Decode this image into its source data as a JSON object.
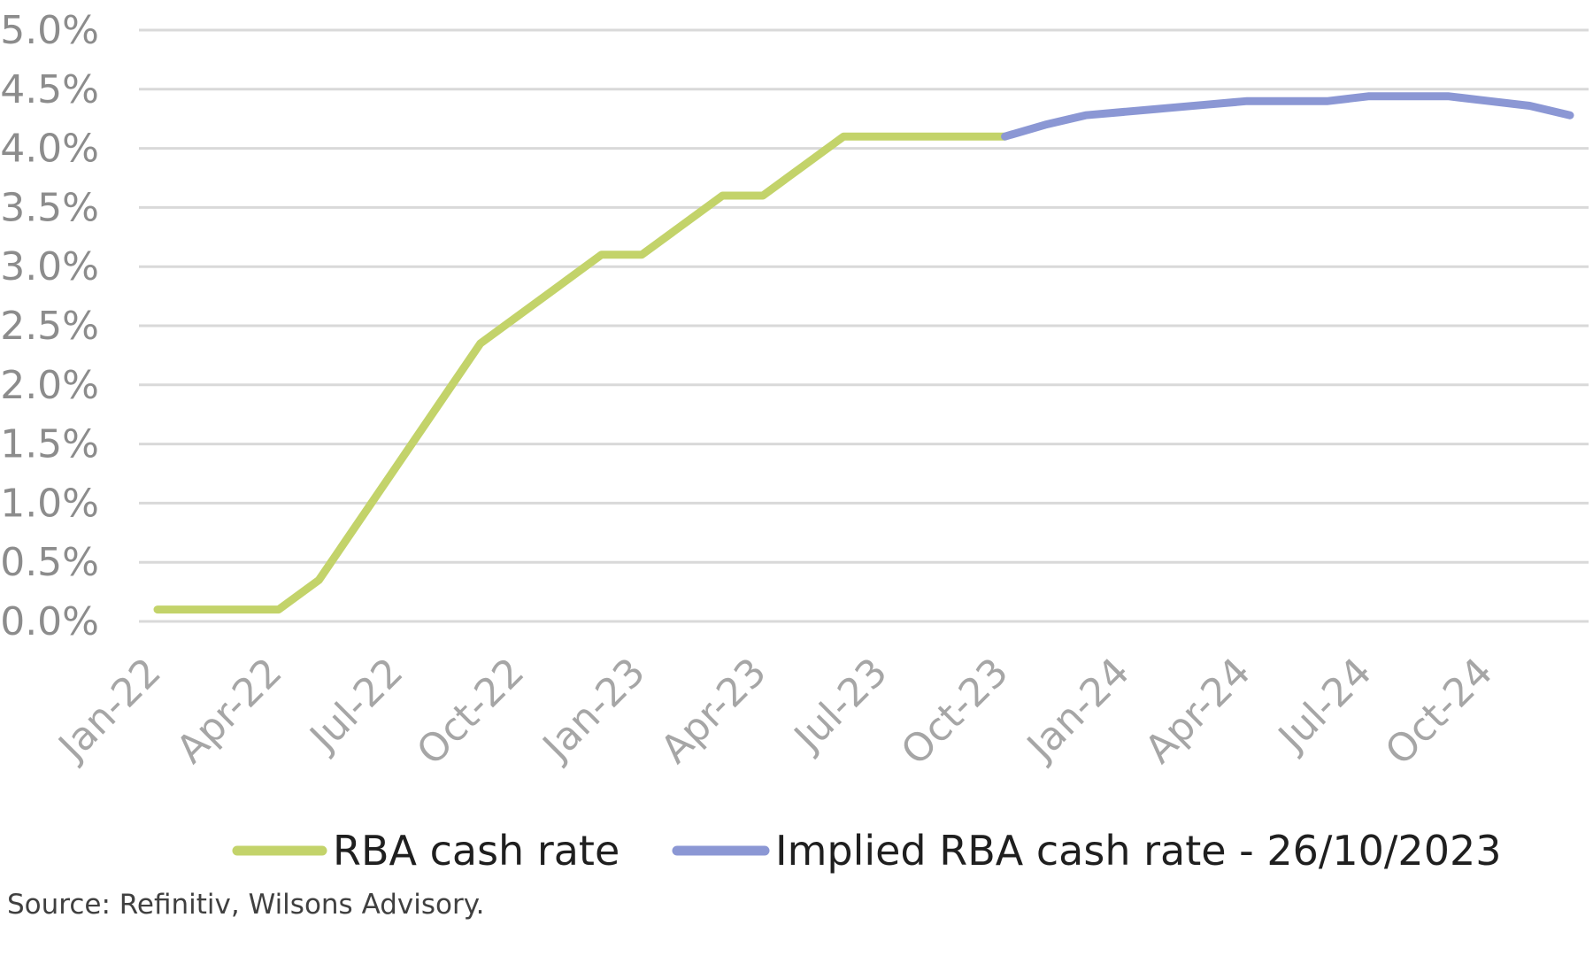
{
  "chart_data": {
    "type": "line",
    "ylabel": "",
    "xlabel": "",
    "ylim": [
      0,
      5
    ],
    "y_tick_values": [
      0,
      0.5,
      1,
      1.5,
      2,
      2.5,
      3,
      3.5,
      4,
      4.5,
      5
    ],
    "y_tick_labels": [
      "0.0%",
      "0.5%",
      "1.0%",
      "1.5%",
      "2.0%",
      "2.5%",
      "3.0%",
      "3.5%",
      "4.0%",
      "4.5%",
      "5.0%"
    ],
    "x_tick_labels": [
      "Jan-22",
      "Apr-22",
      "Jul-22",
      "Oct-22",
      "Jan-23",
      "Apr-23",
      "Jul-23",
      "Oct-23",
      "Jan-24",
      "Apr-24",
      "Jul-24",
      "Oct-24"
    ],
    "grid": true,
    "legend_position": "bottom",
    "series": [
      {
        "name": "RBA cash rate",
        "color": "#c3d36a",
        "x": [
          "Jan-22",
          "Feb-22",
          "Mar-22",
          "Apr-22",
          "May-22",
          "Jun-22",
          "Jul-22",
          "Aug-22",
          "Sep-22",
          "Oct-22",
          "Nov-22",
          "Dec-22",
          "Jan-23",
          "Feb-23",
          "Mar-23",
          "Apr-23",
          "May-23",
          "Jun-23",
          "Jul-23",
          "Aug-23",
          "Sep-23",
          "Oct-23"
        ],
        "values": [
          0.1,
          0.1,
          0.1,
          0.1,
          0.35,
          0.85,
          1.35,
          1.85,
          2.35,
          2.6,
          2.85,
          3.1,
          3.1,
          3.35,
          3.6,
          3.6,
          3.85,
          4.1,
          4.1,
          4.1,
          4.1,
          4.1
        ]
      },
      {
        "name": "Implied RBA cash rate - 26/10/2023",
        "color": "#8b97d4",
        "x": [
          "Oct-23",
          "Nov-23",
          "Dec-23",
          "Jan-24",
          "Feb-24",
          "Mar-24",
          "Apr-24",
          "May-24",
          "Jun-24",
          "Jul-24",
          "Aug-24",
          "Sep-24",
          "Oct-24",
          "Nov-24",
          "Dec-24"
        ],
        "values": [
          4.1,
          4.2,
          4.28,
          4.31,
          4.34,
          4.37,
          4.4,
          4.4,
          4.4,
          4.44,
          4.44,
          4.44,
          4.4,
          4.36,
          4.28
        ]
      }
    ]
  },
  "source_text": "Source: Refinitiv, Wilsons Advisory."
}
